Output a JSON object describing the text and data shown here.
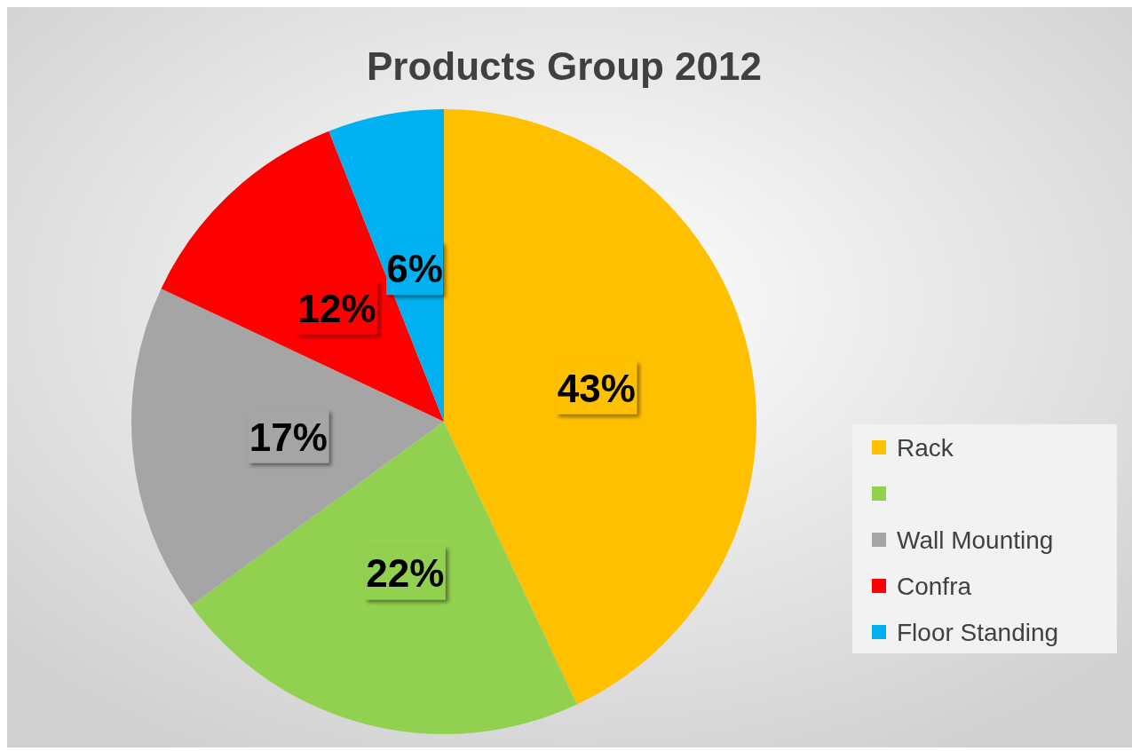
{
  "chart_data": {
    "type": "pie",
    "title": "Products Group 2012",
    "categories": [
      "Rack",
      null,
      "Wall Mounting",
      "Confra",
      "Floor Standing"
    ],
    "values": [
      43,
      22,
      17,
      12,
      6
    ],
    "colors": [
      "#ffc000",
      "#92d050",
      "#a5a5a5",
      "#ff0000",
      "#00b0f0"
    ],
    "value_labels": [
      "43%",
      "22%",
      "17%",
      "12%",
      "6%"
    ],
    "legend": "right"
  }
}
